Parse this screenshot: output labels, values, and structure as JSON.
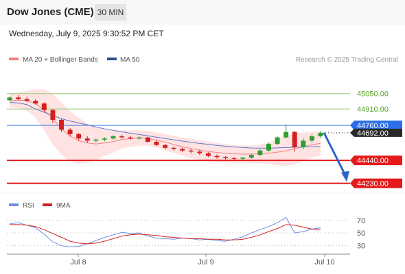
{
  "header": {
    "title": "Dow Jones (CME)",
    "timeframe": "30 MIN"
  },
  "datetime": "Wednesday, July 9, 2025 9:30:52 PM CET",
  "legend": {
    "ma20_bb": "MA 20 + Bollinger Bands",
    "ma50": "MA 50"
  },
  "credit": "Research © 2025 Trading Central",
  "rsi_legend": {
    "rsi": "RSI",
    "ma9": "9MA"
  },
  "colors": {
    "bullish": "#2e9e2e",
    "bearish": "#d42020",
    "bollinger_fill": "#ffd9d9",
    "ma20": "#f28080",
    "ma50": "#5a78c8",
    "resistance": "#9cc97a",
    "pivot": "#2c6ee8",
    "support": "#e41b1b",
    "arrow": "#2f63c4",
    "rsi": "#6b8ee0",
    "rsi_ma": "#d42020"
  },
  "chart_data": [
    {
      "type": "line",
      "title": "Dow Jones (CME) 30 MIN",
      "x_ticks": [
        "Jul 8",
        "Jul 9",
        "Jul 10"
      ],
      "ylim": [
        44140,
        45280
      ],
      "levels": [
        {
          "label": "45050.00",
          "value": 45050,
          "kind": "resistance"
        },
        {
          "label": "44910.00",
          "value": 44910,
          "kind": "resistance"
        },
        {
          "label": "44760.00",
          "value": 44760,
          "kind": "pivot"
        },
        {
          "label": "44440.00",
          "value": 44440,
          "kind": "support"
        },
        {
          "label": "44230.00",
          "value": 44230,
          "kind": "support"
        }
      ],
      "last_price": {
        "label": "44692.00",
        "value": 44692
      },
      "series": [
        {
          "name": "MA 20 + Bollinger Bands",
          "values": [
            44985,
            44990,
            44985,
            44960,
            44900,
            44820,
            44730,
            44660,
            44620,
            44600,
            44590,
            44600,
            44612,
            44632,
            44640,
            44645,
            44640,
            44625,
            44608,
            44585,
            44565,
            44548,
            44535,
            44522,
            44512,
            44505,
            44500,
            44497,
            44497,
            44500,
            44506,
            44515,
            44528,
            44545,
            44565,
            44582,
            44596
          ]
        },
        {
          "name": "MA 50",
          "values": [
            44970,
            44965,
            44950,
            44910,
            44880,
            44850,
            44820,
            44800,
            44782,
            44765,
            44745,
            44728,
            44715,
            44700,
            44688,
            44676,
            44665,
            44652,
            44640,
            44628,
            44616,
            44605,
            44595,
            44586,
            44577,
            44570,
            44563,
            44558,
            44553,
            44552,
            44552,
            44554,
            44557,
            44560,
            44562,
            44564,
            44566
          ]
        }
      ],
      "ohlc": [
        [
          44990,
          45025,
          44980,
          45015
        ],
        [
          45015,
          45035,
          44990,
          45000
        ],
        [
          45000,
          45020,
          44975,
          44985
        ],
        [
          44985,
          45000,
          44950,
          44960
        ],
        [
          44960,
          44970,
          44880,
          44900
        ],
        [
          44900,
          44910,
          44780,
          44810
        ],
        [
          44810,
          44820,
          44700,
          44720
        ],
        [
          44720,
          44735,
          44660,
          44680
        ],
        [
          44680,
          44690,
          44620,
          44640
        ],
        [
          44640,
          44660,
          44600,
          44620
        ],
        [
          44620,
          44640,
          44605,
          44630
        ],
        [
          44630,
          44650,
          44615,
          44640
        ],
        [
          44640,
          44670,
          44630,
          44660
        ],
        [
          44660,
          44675,
          44640,
          44650
        ],
        [
          44650,
          44665,
          44630,
          44640
        ],
        [
          44640,
          44660,
          44625,
          44650
        ],
        [
          44650,
          44655,
          44600,
          44610
        ],
        [
          44610,
          44625,
          44570,
          44580
        ],
        [
          44580,
          44590,
          44540,
          44555
        ],
        [
          44555,
          44565,
          44530,
          44545
        ],
        [
          44545,
          44555,
          44515,
          44530
        ],
        [
          44530,
          44545,
          44505,
          44520
        ],
        [
          44520,
          44535,
          44490,
          44505
        ],
        [
          44505,
          44515,
          44470,
          44480
        ],
        [
          44480,
          44495,
          44455,
          44470
        ],
        [
          44470,
          44480,
          44450,
          44460
        ],
        [
          44460,
          44470,
          44445,
          44455
        ],
        [
          44455,
          44470,
          44440,
          44465
        ],
        [
          44465,
          44500,
          44455,
          44490
        ],
        [
          44490,
          44540,
          44480,
          44530
        ],
        [
          44530,
          44600,
          44520,
          44590
        ],
        [
          44590,
          44660,
          44580,
          44650
        ],
        [
          44650,
          44770,
          44640,
          44700
        ],
        [
          44700,
          44710,
          44520,
          44560
        ],
        [
          44560,
          44640,
          44540,
          44620
        ],
        [
          44620,
          44680,
          44600,
          44660
        ],
        [
          44660,
          44710,
          44645,
          44692
        ]
      ],
      "forecast": [
        44692,
        44230
      ]
    },
    {
      "type": "line",
      "title": "RSI",
      "y_ticks": [
        "70",
        "50",
        "30"
      ],
      "ylim": [
        20,
        80
      ],
      "reference_lines": [
        70,
        50,
        30
      ],
      "series": [
        {
          "name": "RSI",
          "values": [
            64,
            66,
            62,
            58,
            48,
            36,
            30,
            28,
            29,
            33,
            38,
            43,
            47,
            51,
            49,
            50,
            45,
            42,
            41,
            40,
            42,
            41,
            39,
            40,
            38,
            37,
            40,
            44,
            50,
            55,
            60,
            66,
            74,
            50,
            52,
            56,
            58
          ]
        },
        {
          "name": "9MA",
          "values": [
            63,
            63,
            62,
            60,
            55,
            49,
            43,
            37,
            34,
            33,
            34,
            37,
            41,
            45,
            47,
            48,
            47,
            46,
            44,
            43,
            42,
            41,
            41,
            40,
            40,
            39,
            39,
            40,
            43,
            47,
            52,
            57,
            63,
            62,
            59,
            56,
            55
          ]
        }
      ]
    }
  ]
}
